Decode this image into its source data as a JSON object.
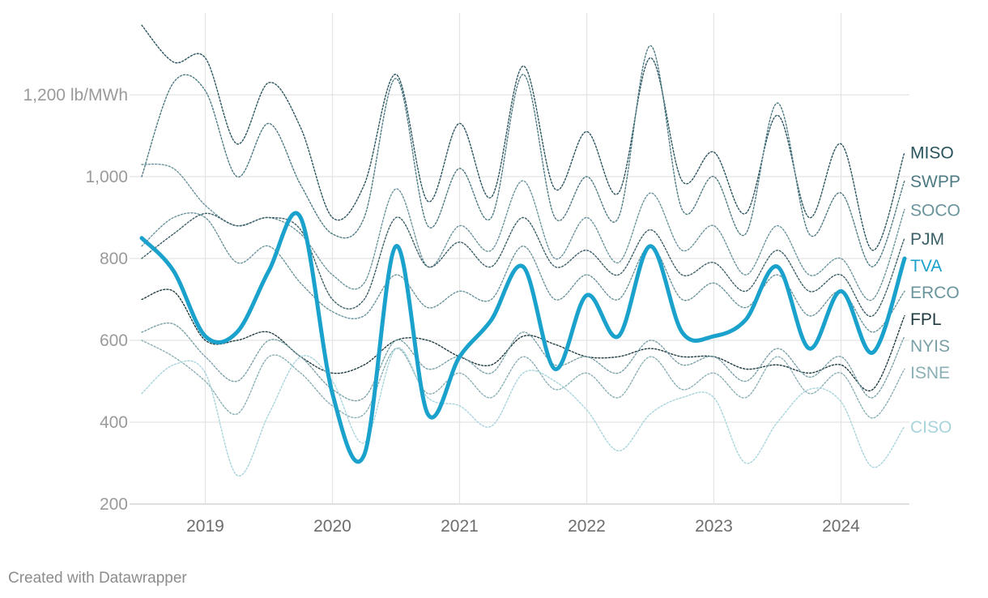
{
  "chart_data": {
    "type": "line",
    "title": "",
    "xlabel": "",
    "ylabel": "",
    "y_unit_label": "1,200 lb/MWh",
    "yticks": [
      200,
      400,
      600,
      800,
      1000,
      1200
    ],
    "ytick_labels": [
      "200",
      "400",
      "600",
      "800",
      "1,000",
      "1,200 lb/MWh"
    ],
    "xticks": [
      2019,
      2020,
      2021,
      2022,
      2023,
      2024
    ],
    "ylim": [
      200,
      1400
    ],
    "xlim": [
      "2018-07-01",
      "2024-07-15"
    ],
    "grid": true,
    "legend": "direct labels at right end of each line",
    "x": [
      "2018-07",
      "2018-10",
      "2019-01",
      "2019-04",
      "2019-07",
      "2019-10",
      "2020-01",
      "2020-04",
      "2020-07",
      "2020-10",
      "2021-01",
      "2021-04",
      "2021-07",
      "2021-10",
      "2022-01",
      "2022-04",
      "2022-07",
      "2022-10",
      "2023-01",
      "2023-04",
      "2023-07",
      "2023-10",
      "2024-01",
      "2024-04",
      "2024-07"
    ],
    "series": [
      {
        "name": "MISO",
        "color": "#29545e",
        "highlight": false,
        "values": [
          1370,
          1280,
          1290,
          1080,
          1230,
          1120,
          900,
          980,
          1250,
          940,
          1130,
          950,
          1270,
          970,
          1110,
          960,
          1290,
          990,
          1060,
          910,
          1150,
          900,
          1080,
          820,
          1060
        ]
      },
      {
        "name": "SWPP",
        "color": "#4d7a83",
        "highlight": false,
        "values": [
          1000,
          1230,
          1210,
          1000,
          1130,
          980,
          860,
          900,
          1240,
          880,
          1020,
          900,
          1250,
          900,
          1000,
          900,
          1320,
          920,
          1000,
          860,
          1180,
          860,
          960,
          780,
          990
        ]
      },
      {
        "name": "SOCO",
        "color": "#6a949c",
        "highlight": false,
        "values": [
          1030,
          1020,
          930,
          880,
          900,
          860,
          760,
          740,
          970,
          780,
          880,
          820,
          990,
          800,
          900,
          790,
          960,
          820,
          880,
          760,
          880,
          760,
          800,
          700,
          920
        ]
      },
      {
        "name": "PJM",
        "color": "#3b5f67",
        "highlight": false,
        "values": [
          800,
          860,
          910,
          880,
          900,
          870,
          700,
          700,
          900,
          780,
          840,
          780,
          900,
          780,
          820,
          760,
          870,
          760,
          790,
          720,
          820,
          720,
          760,
          660,
          850
        ]
      },
      {
        "name": "TVA",
        "color": "#1aa1cc",
        "highlight": true,
        "values": [
          850,
          770,
          610,
          620,
          770,
          900,
          470,
          320,
          830,
          420,
          560,
          650,
          780,
          530,
          710,
          610,
          830,
          620,
          610,
          650,
          780,
          580,
          720,
          570,
          800
        ]
      },
      {
        "name": "ERCO",
        "color": "#6a949c",
        "highlight": false,
        "values": [
          830,
          900,
          900,
          790,
          830,
          740,
          670,
          660,
          760,
          680,
          720,
          700,
          830,
          700,
          760,
          700,
          830,
          700,
          740,
          680,
          760,
          660,
          720,
          620,
          720
        ]
      },
      {
        "name": "FPL",
        "color": "#1f3b40",
        "highlight": false,
        "values": [
          700,
          720,
          600,
          600,
          620,
          560,
          520,
          540,
          600,
          600,
          560,
          540,
          610,
          590,
          560,
          560,
          580,
          560,
          560,
          530,
          540,
          520,
          540,
          480,
          660
        ]
      },
      {
        "name": "NYIS",
        "color": "#7aa1a8",
        "highlight": false,
        "values": [
          620,
          640,
          560,
          500,
          600,
          560,
          480,
          460,
          600,
          530,
          560,
          520,
          620,
          540,
          560,
          520,
          600,
          540,
          560,
          500,
          580,
          510,
          560,
          460,
          610
        ]
      },
      {
        "name": "ISNE",
        "color": "#8ab0b6",
        "highlight": false,
        "values": [
          600,
          560,
          500,
          420,
          560,
          520,
          440,
          420,
          580,
          470,
          520,
          460,
          560,
          480,
          520,
          460,
          560,
          480,
          520,
          460,
          560,
          470,
          520,
          410,
          530
        ]
      },
      {
        "name": "CISO",
        "color": "#a8d4dc",
        "highlight": false,
        "values": [
          470,
          540,
          520,
          270,
          420,
          560,
          500,
          350,
          580,
          460,
          440,
          390,
          520,
          500,
          430,
          330,
          420,
          460,
          460,
          300,
          400,
          480,
          450,
          290,
          390
        ]
      }
    ],
    "credit": "Created with Datawrapper"
  }
}
